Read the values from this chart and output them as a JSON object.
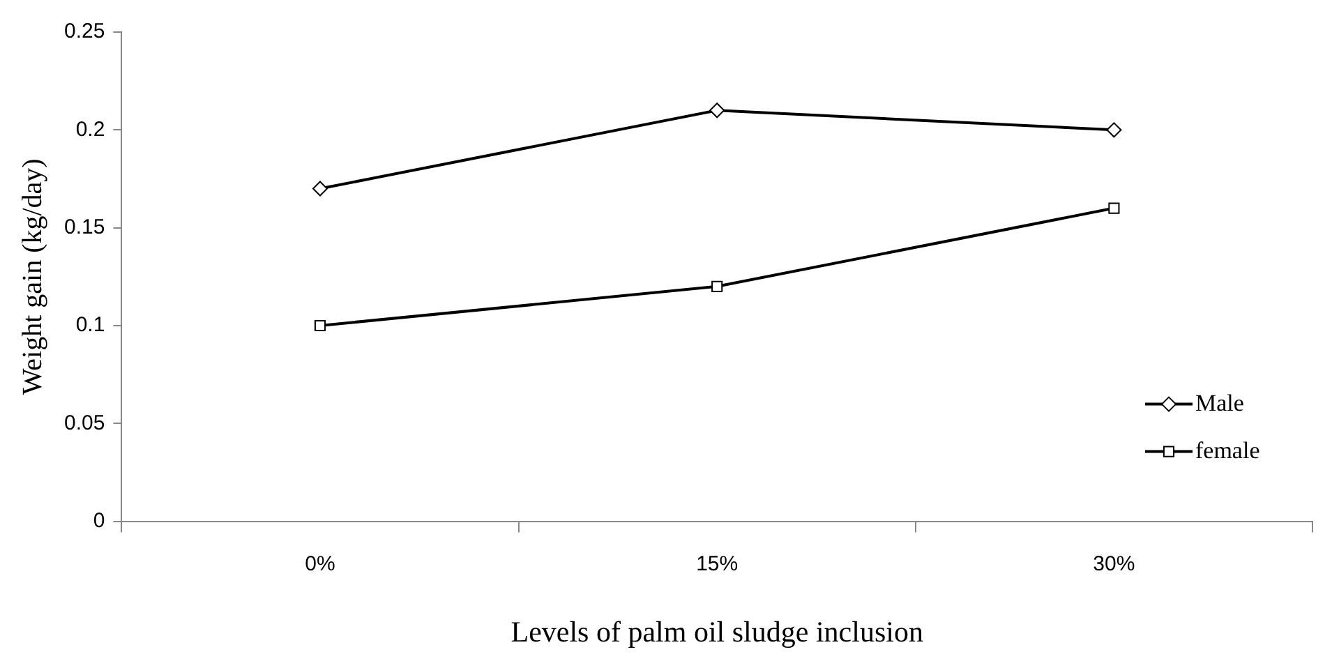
{
  "chart_data": {
    "type": "line",
    "xlabel": "Levels of palm oil sludge inclusion",
    "ylabel": "Weight gain (kg/day)",
    "categories": [
      "0%",
      "15%",
      "30%"
    ],
    "series": [
      {
        "name": "Male",
        "color": "#000000",
        "marker": "diamond",
        "values": [
          0.17,
          0.21,
          0.2
        ]
      },
      {
        "name": "female",
        "color": "#000000",
        "marker": "square",
        "values": [
          0.1,
          0.12,
          0.16
        ]
      }
    ],
    "ylim": [
      0,
      0.25
    ],
    "yticks": [
      0,
      0.05,
      0.1,
      0.15,
      0.2,
      0.25
    ],
    "grid": false,
    "legend": "bottom right",
    "line_style": "solid"
  }
}
